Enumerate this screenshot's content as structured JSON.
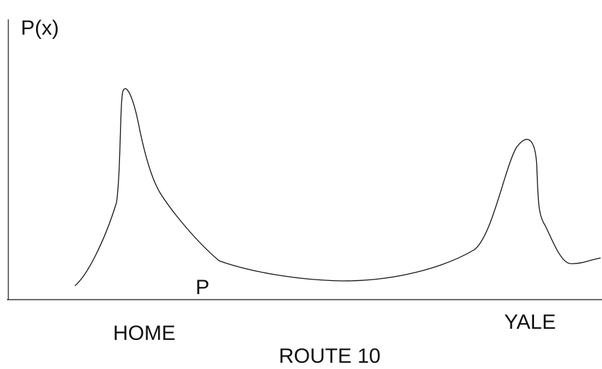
{
  "diagram": {
    "y_axis_label": "P(x)",
    "curve_point_label": "P",
    "left_location_label": "HOME",
    "right_location_label": "YALE",
    "x_axis_title": "ROUTE 10",
    "line_color": "#111111",
    "background": "#ffffff"
  }
}
